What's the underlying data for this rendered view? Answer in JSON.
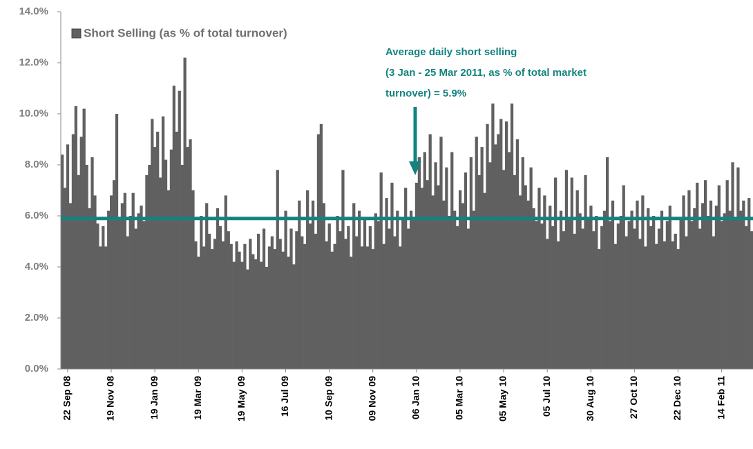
{
  "chart_data": {
    "type": "bar",
    "legend": "Short Selling (as % of total turnover)",
    "color": "#606060",
    "average": 5.9,
    "average_color": "#14837f",
    "annotation": [
      "Average daily short selling",
      "(3 Jan - 25 Mar 2011, as % of total market",
      "turnover) = 5.9%"
    ],
    "ylim": [
      0,
      14
    ],
    "yticks": [
      {
        "value": 0,
        "label": "0.0%"
      },
      {
        "value": 2,
        "label": "2.0%"
      },
      {
        "value": 4,
        "label": "4.0%"
      },
      {
        "value": 6,
        "label": "6.0%"
      },
      {
        "value": 8,
        "label": "8.0%"
      },
      {
        "value": 10,
        "label": "10.0%"
      },
      {
        "value": 12,
        "label": "12.0%"
      },
      {
        "value": 14,
        "label": "14.0%"
      }
    ],
    "categories": [
      null,
      null,
      "22 Sep 08",
      null,
      null,
      null,
      null,
      null,
      null,
      null,
      null,
      null,
      null,
      null,
      null,
      null,
      null,
      null,
      "19 Nov 08",
      null,
      null,
      null,
      null,
      null,
      null,
      null,
      null,
      null,
      null,
      null,
      null,
      null,
      null,
      null,
      "19 Jan 09",
      null,
      null,
      null,
      null,
      null,
      null,
      null,
      null,
      null,
      null,
      null,
      null,
      null,
      null,
      null,
      "19 Mar 09",
      null,
      null,
      null,
      null,
      null,
      null,
      null,
      null,
      null,
      null,
      null,
      null,
      null,
      null,
      null,
      "19 May 09",
      null,
      null,
      null,
      null,
      null,
      null,
      null,
      null,
      null,
      null,
      null,
      null,
      null,
      null,
      null,
      "16 Jul 09",
      null,
      null,
      null,
      null,
      null,
      null,
      null,
      null,
      null,
      null,
      null,
      null,
      null,
      null,
      null,
      "10 Sep 09",
      null,
      null,
      null,
      null,
      null,
      null,
      null,
      null,
      null,
      null,
      null,
      null,
      null,
      null,
      null,
      "09 Nov 09",
      null,
      null,
      null,
      null,
      null,
      null,
      null,
      null,
      null,
      null,
      null,
      null,
      null,
      null,
      null,
      "06 Jan 10",
      null,
      null,
      null,
      null,
      null,
      null,
      null,
      null,
      null,
      null,
      null,
      null,
      null,
      null,
      null,
      "05 Mar 10",
      null,
      null,
      null,
      null,
      null,
      null,
      null,
      null,
      null,
      null,
      null,
      null,
      null,
      null,
      null,
      "05 May 10",
      null,
      null,
      null,
      null,
      null,
      null,
      null,
      null,
      null,
      null,
      null,
      null,
      null,
      null,
      null,
      "05 Jul 10",
      null,
      null,
      null,
      null,
      null,
      null,
      null,
      null,
      null,
      null,
      null,
      null,
      null,
      null,
      null,
      "30 Aug 10",
      null,
      null,
      null,
      null,
      null,
      null,
      null,
      null,
      null,
      null,
      null,
      null,
      null,
      null,
      null,
      "27 Oct 10",
      null,
      null,
      null,
      null,
      null,
      null,
      null,
      null,
      null,
      null,
      null,
      null,
      null,
      null,
      null,
      "22 Dec 10",
      null,
      null,
      null,
      null,
      null,
      null,
      null,
      null,
      null,
      null,
      null,
      null,
      null,
      null,
      null,
      "14 Feb 11",
      null,
      null,
      null,
      null,
      null,
      null,
      null,
      null,
      null,
      null,
      null
    ],
    "values": [
      8.4,
      7.1,
      8.8,
      6.5,
      9.2,
      10.3,
      7.6,
      9.1,
      10.2,
      8.0,
      6.3,
      8.3,
      6.8,
      5.7,
      4.8,
      5.6,
      4.8,
      6.2,
      6.8,
      7.4,
      10.0,
      5.9,
      6.5,
      6.9,
      5.2,
      6.0,
      6.9,
      5.5,
      6.1,
      6.4,
      5.8,
      7.6,
      8.0,
      9.8,
      8.7,
      9.3,
      7.5,
      9.9,
      8.2,
      7.0,
      8.6,
      11.1,
      9.3,
      10.9,
      8.0,
      12.2,
      8.7,
      9.0,
      7.0,
      5.0,
      4.4,
      6.0,
      4.8,
      6.5,
      5.3,
      4.7,
      5.1,
      6.3,
      5.6,
      5.0,
      6.8,
      5.4,
      4.9,
      4.2,
      5.0,
      4.6,
      4.2,
      4.9,
      3.9,
      5.1,
      4.5,
      4.3,
      5.3,
      4.2,
      5.5,
      4.0,
      4.8,
      5.2,
      4.7,
      7.8,
      5.1,
      4.6,
      6.2,
      4.4,
      5.5,
      4.1,
      5.4,
      6.6,
      5.2,
      4.9,
      7.0,
      5.7,
      6.6,
      5.3,
      9.2,
      9.6,
      6.5,
      5.0,
      5.7,
      4.6,
      4.9,
      6.0,
      5.4,
      7.8,
      5.1,
      5.6,
      4.4,
      6.5,
      5.2,
      6.2,
      4.8,
      5.9,
      4.8,
      5.6,
      4.7,
      6.1,
      5.8,
      7.7,
      4.9,
      6.7,
      5.5,
      7.3,
      5.2,
      6.2,
      4.8,
      5.9,
      7.1,
      5.5,
      6.2,
      5.9,
      7.3,
      8.3,
      7.1,
      8.5,
      7.4,
      9.2,
      6.8,
      8.1,
      7.2,
      9.1,
      6.6,
      7.9,
      6.0,
      8.5,
      6.2,
      5.6,
      7.0,
      6.5,
      7.7,
      5.5,
      8.3,
      6.2,
      9.1,
      7.6,
      8.7,
      6.9,
      9.6,
      8.1,
      10.4,
      8.8,
      9.2,
      9.8,
      7.8,
      9.7,
      8.5,
      10.4,
      7.6,
      9.0,
      6.8,
      8.3,
      7.2,
      6.6,
      7.9,
      6.3,
      5.8,
      7.1,
      5.7,
      6.8,
      5.1,
      6.4,
      5.6,
      7.5,
      5.0,
      6.2,
      5.4,
      7.8,
      5.9,
      7.5,
      5.3,
      7.0,
      6.1,
      5.5,
      7.6,
      5.9,
      6.4,
      5.4,
      6.0,
      4.7,
      5.6,
      6.2,
      8.3,
      5.8,
      6.6,
      4.9,
      5.7,
      6.0,
      7.2,
      5.2,
      5.8,
      6.2,
      5.5,
      6.6,
      5.1,
      6.8,
      4.8,
      6.3,
      5.6,
      6.0,
      4.9,
      5.5,
      6.2,
      5.0,
      5.8,
      6.4,
      5.0,
      5.3,
      4.7,
      5.9,
      6.8,
      5.2,
      7.0,
      5.8,
      6.3,
      7.3,
      5.5,
      6.5,
      7.4,
      6.0,
      6.6,
      5.2,
      6.4,
      7.2,
      5.8,
      6.1,
      7.4,
      6.2,
      8.1,
      5.9,
      7.9,
      6.2,
      6.6,
      5.6,
      6.7,
      5.4
    ]
  }
}
